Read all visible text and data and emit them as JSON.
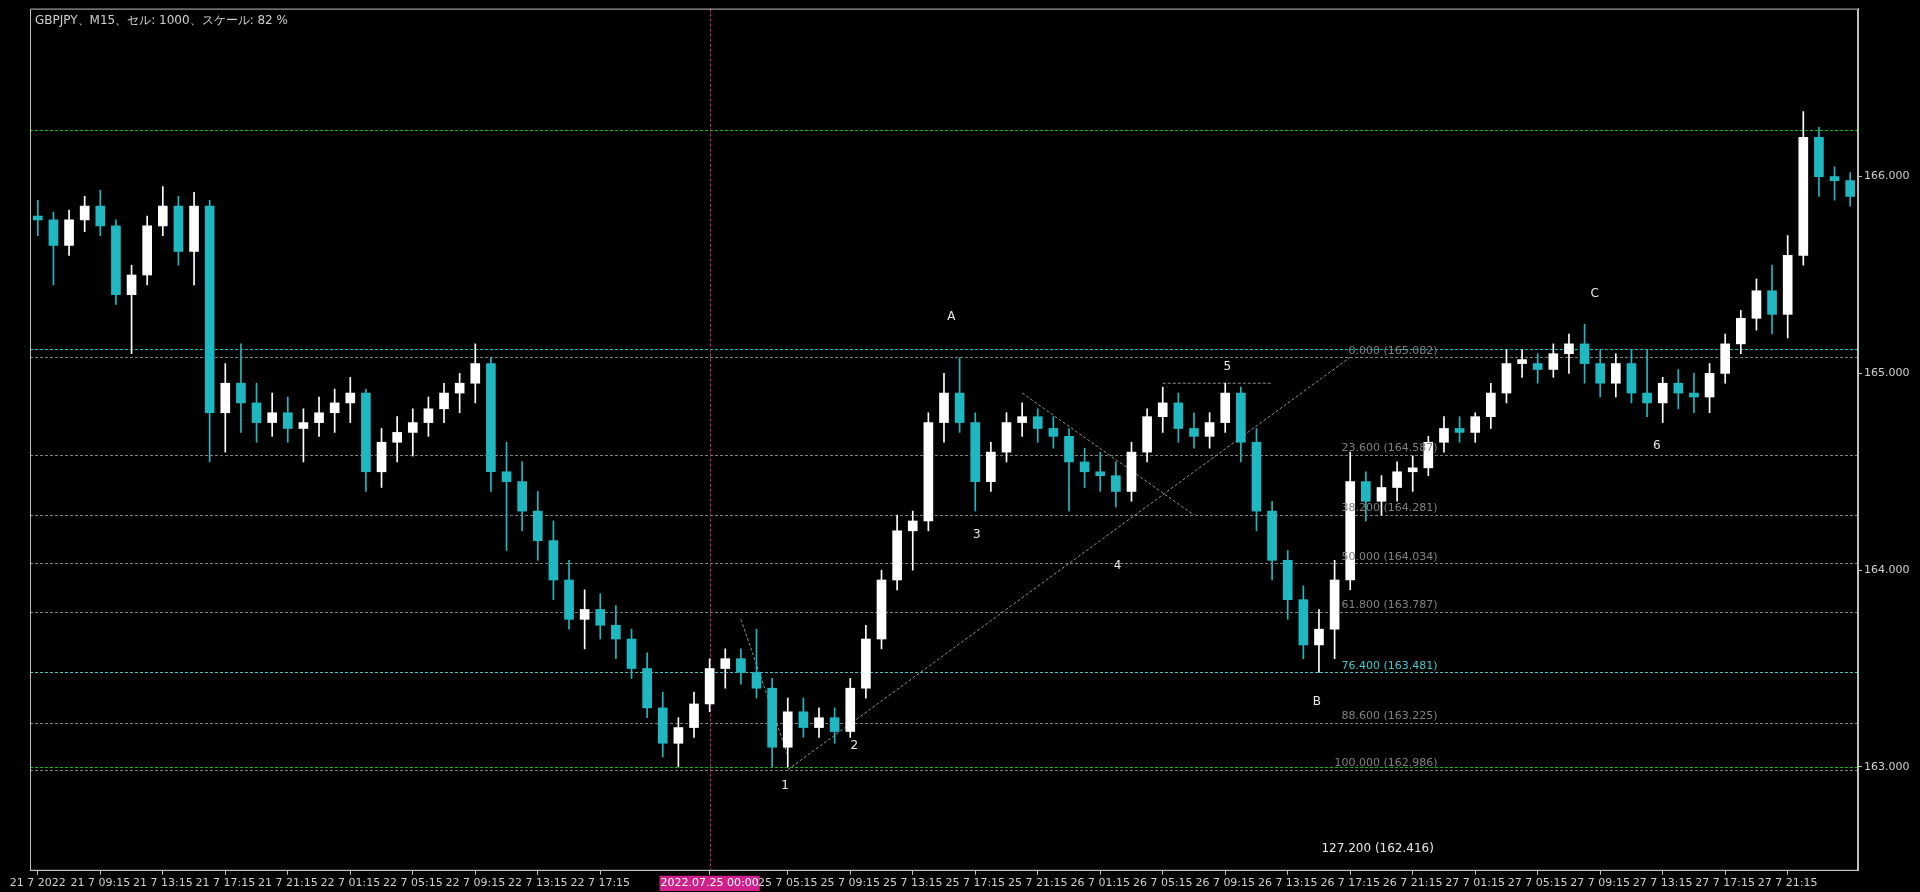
{
  "chart_data": {
    "type": "candlestick",
    "title": "GBPJPY、M15、セル: 1000、スケール: 82 %",
    "categories": [
      "21 7 2022",
      null,
      null,
      null,
      "21 7 09:15",
      null,
      null,
      null,
      "21 7 13:15",
      null,
      null,
      null,
      "21 7 17:15",
      null,
      null,
      null,
      "21 7 21:15",
      null,
      null,
      null,
      "22 7 01:15",
      null,
      null,
      null,
      "22 7 05:15",
      null,
      null,
      null,
      "22 7 09:15",
      null,
      null,
      null,
      "22 7 13:15",
      null,
      null,
      null,
      "22 7 17:15",
      null,
      null,
      null,
      null,
      null,
      null,
      "2022.07.25 00:00",
      null,
      null,
      null,
      null,
      "25 7 05:15",
      null,
      null,
      null,
      "25 7 09:15",
      null,
      null,
      null,
      "25 7 13:15",
      null,
      null,
      null,
      "25 7 17:15",
      null,
      null,
      null,
      "25 7 21:15",
      null,
      null,
      null,
      "26 7 01:15",
      null,
      null,
      null,
      "26 7 05:15",
      null,
      null,
      null,
      "26 7 09:15",
      null,
      null,
      null,
      "26 7 13:15",
      null,
      null,
      null,
      "26 7 17:15",
      null,
      null,
      null,
      "26 7 21:15",
      null,
      null,
      null,
      "27 7 01:15",
      null,
      null,
      null,
      "27 7 05:15",
      null,
      null,
      null,
      "27 7 09:15",
      null,
      null,
      null,
      "27 7 13:15",
      null,
      null,
      null,
      "27 7 17:15",
      null,
      null,
      null,
      "27 7 21:15",
      null,
      null,
      null,
      null
    ],
    "ohlc": [
      [
        165.8,
        165.88,
        165.7,
        165.78
      ],
      [
        165.78,
        165.82,
        165.45,
        165.65
      ],
      [
        165.65,
        165.83,
        165.6,
        165.78
      ],
      [
        165.78,
        165.9,
        165.72,
        165.85
      ],
      [
        165.85,
        165.93,
        165.7,
        165.75
      ],
      [
        165.75,
        165.78,
        165.35,
        165.4
      ],
      [
        165.4,
        165.55,
        165.1,
        165.5
      ],
      [
        165.5,
        165.8,
        165.45,
        165.75
      ],
      [
        165.75,
        165.95,
        165.7,
        165.85
      ],
      [
        165.85,
        165.9,
        165.55,
        165.62
      ],
      [
        165.62,
        165.92,
        165.45,
        165.85
      ],
      [
        165.85,
        165.88,
        164.55,
        164.8
      ],
      [
        164.8,
        165.05,
        164.6,
        164.95
      ],
      [
        164.95,
        165.15,
        164.7,
        164.85
      ],
      [
        164.85,
        164.95,
        164.65,
        164.75
      ],
      [
        164.75,
        164.9,
        164.68,
        164.8
      ],
      [
        164.8,
        164.88,
        164.65,
        164.72
      ],
      [
        164.72,
        164.82,
        164.55,
        164.75
      ],
      [
        164.75,
        164.88,
        164.68,
        164.8
      ],
      [
        164.8,
        164.92,
        164.7,
        164.85
      ],
      [
        164.85,
        164.98,
        164.75,
        164.9
      ],
      [
        164.9,
        164.92,
        164.4,
        164.5
      ],
      [
        164.5,
        164.72,
        164.42,
        164.65
      ],
      [
        164.65,
        164.78,
        164.55,
        164.7
      ],
      [
        164.7,
        164.82,
        164.58,
        164.75
      ],
      [
        164.75,
        164.88,
        164.68,
        164.82
      ],
      [
        164.82,
        164.95,
        164.75,
        164.9
      ],
      [
        164.9,
        165.0,
        164.8,
        164.95
      ],
      [
        164.95,
        165.15,
        164.85,
        165.05
      ],
      [
        165.05,
        165.08,
        164.4,
        164.5
      ],
      [
        164.5,
        164.65,
        164.1,
        164.45
      ],
      [
        164.45,
        164.55,
        164.2,
        164.3
      ],
      [
        164.3,
        164.4,
        164.05,
        164.15
      ],
      [
        164.15,
        164.25,
        163.85,
        163.95
      ],
      [
        163.95,
        164.05,
        163.7,
        163.75
      ],
      [
        163.75,
        163.9,
        163.6,
        163.8
      ],
      [
        163.8,
        163.88,
        163.65,
        163.72
      ],
      [
        163.72,
        163.82,
        163.55,
        163.65
      ],
      [
        163.65,
        163.7,
        163.45,
        163.5
      ],
      [
        163.5,
        163.58,
        163.25,
        163.3
      ],
      [
        163.3,
        163.38,
        163.05,
        163.12
      ],
      [
        163.12,
        163.25,
        163.0,
        163.2
      ],
      [
        163.2,
        163.38,
        163.15,
        163.32
      ],
      [
        163.32,
        163.55,
        163.28,
        163.5
      ],
      [
        163.5,
        163.6,
        163.4,
        163.55
      ],
      [
        163.55,
        163.6,
        163.42,
        163.48
      ],
      [
        163.48,
        163.7,
        163.35,
        163.4
      ],
      [
        163.4,
        163.45,
        163.0,
        163.1
      ],
      [
        163.1,
        163.35,
        163.0,
        163.28
      ],
      [
        163.28,
        163.35,
        163.15,
        163.2
      ],
      [
        163.2,
        163.3,
        163.15,
        163.25
      ],
      [
        163.25,
        163.3,
        163.12,
        163.18
      ],
      [
        163.18,
        163.45,
        163.15,
        163.4
      ],
      [
        163.4,
        163.72,
        163.35,
        163.65
      ],
      [
        163.65,
        164.0,
        163.6,
        163.95
      ],
      [
        163.95,
        164.28,
        163.9,
        164.2
      ],
      [
        164.2,
        164.3,
        164.0,
        164.25
      ],
      [
        164.25,
        164.8,
        164.2,
        164.75
      ],
      [
        164.75,
        165.0,
        164.65,
        164.9
      ],
      [
        164.9,
        165.08,
        164.7,
        164.75
      ],
      [
        164.75,
        164.8,
        164.3,
        164.45
      ],
      [
        164.45,
        164.65,
        164.4,
        164.6
      ],
      [
        164.6,
        164.8,
        164.55,
        164.75
      ],
      [
        164.75,
        164.85,
        164.68,
        164.78
      ],
      [
        164.78,
        164.82,
        164.65,
        164.72
      ],
      [
        164.72,
        164.78,
        164.62,
        164.68
      ],
      [
        164.68,
        164.72,
        164.3,
        164.55
      ],
      [
        164.55,
        164.62,
        164.42,
        164.5
      ],
      [
        164.5,
        164.6,
        164.4,
        164.48
      ],
      [
        164.48,
        164.55,
        164.32,
        164.4
      ],
      [
        164.4,
        164.65,
        164.35,
        164.6
      ],
      [
        164.6,
        164.82,
        164.55,
        164.78
      ],
      [
        164.78,
        164.93,
        164.7,
        164.85
      ],
      [
        164.85,
        164.9,
        164.65,
        164.72
      ],
      [
        164.72,
        164.8,
        164.62,
        164.68
      ],
      [
        164.68,
        164.8,
        164.62,
        164.75
      ],
      [
        164.75,
        164.95,
        164.7,
        164.9
      ],
      [
        164.9,
        164.93,
        164.55,
        164.65
      ],
      [
        164.65,
        164.72,
        164.2,
        164.3
      ],
      [
        164.3,
        164.35,
        163.95,
        164.05
      ],
      [
        164.05,
        164.1,
        163.75,
        163.85
      ],
      [
        163.85,
        163.92,
        163.55,
        163.62
      ],
      [
        163.62,
        163.8,
        163.48,
        163.7
      ],
      [
        163.7,
        164.05,
        163.55,
        163.95
      ],
      [
        163.95,
        164.6,
        163.9,
        164.45
      ],
      [
        164.45,
        164.5,
        164.25,
        164.35
      ],
      [
        164.35,
        164.48,
        164.28,
        164.42
      ],
      [
        164.42,
        164.55,
        164.35,
        164.5
      ],
      [
        164.5,
        164.58,
        164.4,
        164.52
      ],
      [
        164.52,
        164.68,
        164.48,
        164.65
      ],
      [
        164.65,
        164.78,
        164.6,
        164.72
      ],
      [
        164.72,
        164.78,
        164.65,
        164.7
      ],
      [
        164.7,
        164.8,
        164.65,
        164.78
      ],
      [
        164.78,
        164.95,
        164.72,
        164.9
      ],
      [
        164.9,
        165.12,
        164.85,
        165.05
      ],
      [
        165.05,
        165.12,
        164.98,
        165.07
      ],
      [
        165.05,
        165.1,
        164.95,
        165.02
      ],
      [
        165.02,
        165.15,
        164.98,
        165.1
      ],
      [
        165.1,
        165.2,
        165.0,
        165.15
      ],
      [
        165.15,
        165.25,
        164.95,
        165.05
      ],
      [
        165.05,
        165.12,
        164.88,
        164.95
      ],
      [
        164.95,
        165.1,
        164.88,
        165.05
      ],
      [
        165.05,
        165.12,
        164.85,
        164.9
      ],
      [
        164.9,
        165.12,
        164.78,
        164.85
      ],
      [
        164.85,
        164.98,
        164.75,
        164.95
      ],
      [
        164.95,
        165.02,
        164.82,
        164.9
      ],
      [
        164.9,
        165.0,
        164.8,
        164.88
      ],
      [
        164.88,
        165.05,
        164.8,
        165.0
      ],
      [
        165.0,
        165.2,
        164.95,
        165.15
      ],
      [
        165.15,
        165.32,
        165.1,
        165.28
      ],
      [
        165.28,
        165.48,
        165.22,
        165.42
      ],
      [
        165.42,
        165.55,
        165.2,
        165.3
      ],
      [
        165.3,
        165.7,
        165.18,
        165.6
      ],
      [
        165.6,
        166.33,
        165.55,
        166.2
      ],
      [
        166.2,
        166.25,
        165.9,
        166.0
      ],
      [
        166.0,
        166.05,
        165.88,
        165.98
      ],
      [
        165.98,
        166.02,
        165.85,
        165.9
      ]
    ],
    "colors": [
      "#1fb8c0",
      "#1fb8c0",
      "#ffffff",
      "#ffffff",
      "#1fb8c0",
      "#1fb8c0",
      "#ffffff",
      "#ffffff",
      "#ffffff",
      "#1fb8c0",
      "#ffffff",
      "#1fb8c0",
      "#ffffff",
      "#1fb8c0",
      "#1fb8c0",
      "#ffffff",
      "#1fb8c0",
      "#ffffff",
      "#ffffff",
      "#ffffff",
      "#ffffff",
      "#1fb8c0",
      "#ffffff",
      "#ffffff",
      "#ffffff",
      "#ffffff",
      "#ffffff",
      "#ffffff",
      "#ffffff",
      "#1fb8c0",
      "#1fb8c0",
      "#1fb8c0",
      "#1fb8c0",
      "#1fb8c0",
      "#1fb8c0",
      "#ffffff",
      "#1fb8c0",
      "#1fb8c0",
      "#1fb8c0",
      "#1fb8c0",
      "#1fb8c0",
      "#ffffff",
      "#ffffff",
      "#ffffff",
      "#ffffff",
      "#1fb8c0",
      "#1fb8c0",
      "#1fb8c0",
      "#ffffff",
      "#1fb8c0",
      "#ffffff",
      "#1fb8c0",
      "#ffffff",
      "#ffffff",
      "#ffffff",
      "#ffffff",
      "#ffffff",
      "#ffffff",
      "#ffffff",
      "#1fb8c0",
      "#1fb8c0",
      "#ffffff",
      "#ffffff",
      "#ffffff",
      "#1fb8c0",
      "#1fb8c0",
      "#1fb8c0",
      "#1fb8c0",
      "#1fb8c0",
      "#1fb8c0",
      "#ffffff",
      "#ffffff",
      "#ffffff",
      "#1fb8c0",
      "#1fb8c0",
      "#ffffff",
      "#ffffff",
      "#1fb8c0",
      "#1fb8c0",
      "#1fb8c0",
      "#1fb8c0",
      "#1fb8c0",
      "#ffffff",
      "#ffffff",
      "#ffffff",
      "#1fb8c0",
      "#ffffff",
      "#ffffff",
      "#ffffff",
      "#ffffff",
      "#ffffff",
      "#1fb8c0",
      "#ffffff",
      "#ffffff",
      "#ffffff",
      "#ffffff",
      "#1fb8c0",
      "#ffffff",
      "#ffffff",
      "#1fb8c0",
      "#1fb8c0",
      "#ffffff",
      "#1fb8c0",
      "#1fb8c0",
      "#ffffff",
      "#1fb8c0",
      "#1fb8c0",
      "#ffffff",
      "#ffffff",
      "#ffffff",
      "#ffffff",
      "#1fb8c0",
      "#ffffff",
      "#ffffff",
      "#1fb8c0",
      "#1fb8c0",
      "#1fb8c0"
    ],
    "series": [
      {
        "type": "line",
        "color": "#909090",
        "line_style": "dashed",
        "values": [
          null,
          null,
          null,
          null,
          null,
          null,
          null,
          null,
          null,
          null,
          null,
          null,
          null,
          null,
          null,
          null,
          null,
          null,
          null,
          null,
          null,
          null,
          null,
          null,
          null,
          null,
          null,
          null,
          null,
          null,
          null,
          null,
          null,
          null,
          null,
          null,
          null,
          null,
          null,
          null,
          null,
          null,
          null,
          null,
          null,
          null,
          null,
          null,
          162.986,
          null,
          null,
          null,
          null,
          null,
          null,
          null,
          null,
          null,
          null,
          null,
          null,
          null,
          null,
          null,
          null,
          null,
          null,
          null,
          null,
          null,
          null,
          null,
          null,
          null,
          null,
          null,
          null,
          null,
          null,
          null,
          null,
          null,
          null,
          null,
          165.082,
          null,
          null,
          null,
          null,
          null,
          null,
          null,
          null,
          null,
          null,
          null,
          null,
          null,
          null,
          null,
          null,
          null,
          null,
          null,
          null,
          null,
          null,
          null,
          null,
          null,
          null,
          null,
          null,
          null,
          null,
          null,
          null
        ]
      },
      {
        "type": "line",
        "color": "#909090",
        "line_style": "dashed",
        "values": [
          null,
          null,
          null,
          null,
          null,
          null,
          null,
          null,
          null,
          null,
          null,
          null,
          null,
          null,
          null,
          null,
          null,
          null,
          null,
          null,
          null,
          null,
          null,
          null,
          null,
          null,
          null,
          null,
          null,
          null,
          null,
          null,
          null,
          null,
          null,
          null,
          null,
          null,
          null,
          null,
          null,
          null,
          null,
          null,
          null,
          null,
          null,
          null,
          null,
          null,
          null,
          null,
          null,
          null,
          null,
          null,
          null,
          null,
          null,
          null,
          null,
          null,
          null,
          164.9,
          null,
          null,
          null,
          null,
          null,
          null,
          null,
          null,
          null,
          null,
          164.28,
          null,
          null,
          null,
          null,
          null,
          null,
          null,
          null,
          null,
          null,
          null,
          null,
          null,
          null,
          null,
          null,
          null,
          null,
          null,
          null,
          null,
          null,
          null,
          null,
          null,
          null,
          null,
          null,
          null,
          null,
          null,
          null,
          null,
          null,
          null,
          null,
          null,
          null,
          null,
          null,
          null,
          null
        ]
      },
      {
        "type": "line",
        "color": "#909090",
        "line_style": "dashed",
        "values": [
          null,
          null,
          null,
          null,
          null,
          null,
          null,
          null,
          null,
          null,
          null,
          null,
          null,
          null,
          null,
          null,
          null,
          null,
          null,
          null,
          null,
          null,
          null,
          null,
          null,
          null,
          null,
          null,
          null,
          null,
          null,
          null,
          null,
          null,
          null,
          null,
          null,
          null,
          null,
          null,
          null,
          null,
          null,
          null,
          null,
          null,
          null,
          null,
          null,
          null,
          null,
          null,
          null,
          null,
          null,
          null,
          null,
          null,
          null,
          null,
          null,
          null,
          null,
          null,
          null,
          null,
          null,
          null,
          null,
          null,
          null,
          null,
          164.95,
          null,
          null,
          null,
          null,
          null,
          null,
          164.95,
          null,
          null,
          null,
          null,
          null,
          null,
          null,
          null,
          null,
          null,
          null,
          null,
          null,
          null,
          null,
          null,
          null,
          null,
          null,
          null,
          null,
          null,
          null,
          null,
          null,
          null,
          null,
          null,
          null,
          null,
          null,
          null,
          null,
          null,
          null,
          null,
          null
        ]
      },
      {
        "type": "line",
        "color": "#909090",
        "line_style": "dashed",
        "values": [
          null,
          null,
          null,
          null,
          null,
          null,
          null,
          null,
          null,
          null,
          null,
          null,
          null,
          null,
          null,
          null,
          null,
          null,
          null,
          null,
          null,
          null,
          null,
          null,
          null,
          null,
          null,
          null,
          null,
          null,
          null,
          null,
          null,
          null,
          null,
          null,
          null,
          null,
          null,
          null,
          null,
          null,
          null,
          null,
          null,
          163.75,
          null,
          null,
          163.06,
          null,
          null,
          null,
          null,
          null,
          null,
          null,
          null,
          null,
          null,
          null,
          null,
          null,
          null,
          null,
          null,
          null,
          null,
          null,
          null,
          null,
          null,
          null,
          null,
          null,
          null,
          null,
          null,
          null,
          null,
          null,
          null,
          null,
          null,
          null,
          null,
          null,
          null,
          null,
          null,
          null,
          null,
          null,
          null,
          null,
          null,
          null,
          null,
          null,
          null,
          null,
          null,
          null,
          null,
          null,
          null,
          null,
          null,
          null,
          null,
          null,
          null,
          null,
          null,
          null,
          null,
          null,
          null
        ]
      }
    ],
    "ylim": [
      162.472,
      166.854
    ],
    "yticks": [
      {
        "value": 163,
        "label": "163.000"
      },
      {
        "value": 164,
        "label": "164.000"
      },
      {
        "value": 165,
        "label": "165.000"
      },
      {
        "value": 166,
        "label": "166.000"
      }
    ],
    "ref_lines": [
      {
        "axis": "y",
        "value": 166.235,
        "color": "#00c000",
        "line_style": "dashed"
      },
      {
        "axis": "y",
        "value": 165.126,
        "color": "#00c8c8",
        "line_style": "dashed"
      },
      {
        "axis": "y",
        "value": 163.0,
        "color": "#00c000",
        "line_style": "dashed"
      },
      {
        "axis": "y",
        "value": 165.082,
        "label": "0.000 (165.082)",
        "color": "#808080",
        "line_style": "dashed"
      },
      {
        "axis": "y",
        "value": 164.587,
        "label": "23.600 (164.587)",
        "color": "#808080",
        "line_style": "dashed"
      },
      {
        "axis": "y",
        "value": 164.281,
        "label": "38.200 (164.281)",
        "color": "#808080",
        "line_style": "dashed"
      },
      {
        "axis": "y",
        "value": 164.034,
        "label": "50.000 (164.034)",
        "color": "#808080",
        "line_style": "dashed"
      },
      {
        "axis": "y",
        "value": 163.787,
        "label": "61.800 (163.787)",
        "color": "#808080",
        "line_style": "dashed"
      },
      {
        "axis": "y",
        "value": 163.481,
        "label": "76.400 (163.481)",
        "color": "#40c8c8",
        "line_style": "dashed"
      },
      {
        "axis": "y",
        "value": 163.225,
        "label": "88.600 (163.225)",
        "color": "#808080",
        "line_style": "dashed"
      },
      {
        "axis": "y",
        "value": 162.986,
        "label": "100.000 (162.986)",
        "color": "#808080",
        "line_style": "dashed"
      },
      {
        "axis": "x",
        "value": "2022.07.25 00:00",
        "color": "#d0208c",
        "line_style": "dashed"
      }
    ],
    "annotations": [
      "A",
      "B",
      "C",
      "1",
      "2",
      "3",
      "4",
      "5",
      "6",
      "127.200 (162.416)"
    ]
  }
}
